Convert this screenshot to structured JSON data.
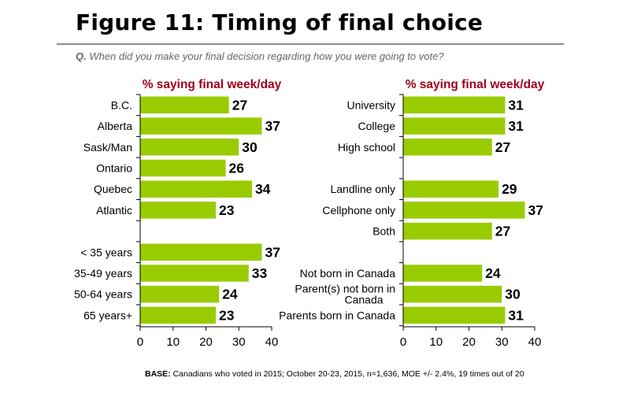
{
  "title": "Figure 11: Timing of final choice",
  "question": {
    "prefix": "Q.",
    "text": "When did you make your final decision regarding how you were going to vote?"
  },
  "base": {
    "label": "BASE:",
    "text": "Canadians who voted in 2015; October 20-23, 2015, n=1,636, MOE +/- 2.4%, 19 times out of 20"
  },
  "colors": {
    "bar": "#99cc00",
    "header": "#a0001e",
    "axis": "#000000"
  },
  "chart_data": [
    {
      "type": "bar",
      "orientation": "horizontal",
      "title": "% saying final week/day",
      "xlim": [
        0,
        40
      ],
      "xticks": [
        0,
        10,
        20,
        30,
        40
      ],
      "categories": [
        "B.C.",
        "Alberta",
        "Sask/Man",
        "Ontario",
        "Quebec",
        "Atlantic",
        "",
        "< 35 years",
        "35-49 years",
        "50-64 years",
        "65 years+"
      ],
      "values": [
        27,
        37,
        30,
        26,
        34,
        23,
        null,
        37,
        33,
        24,
        23
      ]
    },
    {
      "type": "bar",
      "orientation": "horizontal",
      "title": "% saying final week/day",
      "xlim": [
        0,
        40
      ],
      "xticks": [
        0,
        10,
        20,
        30,
        40
      ],
      "categories": [
        "University",
        "College",
        "High school",
        "",
        "Landline only",
        "Cellphone only",
        "Both",
        "",
        "Not born in Canada",
        "Parent(s) not born in Canada",
        "Parents born in Canada"
      ],
      "values": [
        31,
        31,
        27,
        null,
        29,
        37,
        27,
        null,
        24,
        30,
        31
      ]
    }
  ]
}
